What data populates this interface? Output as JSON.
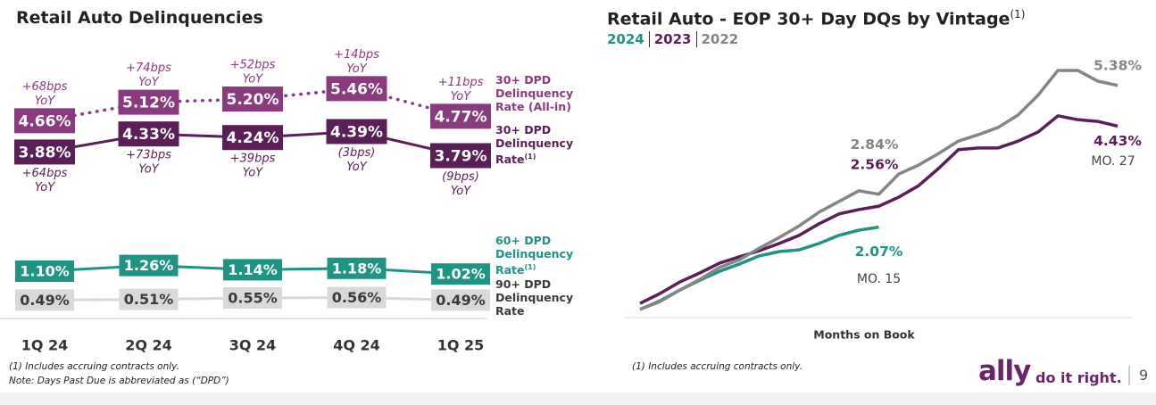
{
  "chart_data": [
    {
      "type": "line",
      "title": "Retail Auto Delinquencies",
      "categories": [
        "1Q 24",
        "2Q 24",
        "3Q 24",
        "4Q 24",
        "1Q 25"
      ],
      "series": [
        {
          "name": "30+ DPD Delinquency Rate (All-in)",
          "color": "#8b3a80",
          "line_style": "dotted",
          "label_color": "#ffffff",
          "annotation_side": "above",
          "values": [
            4.66,
            5.12,
            5.2,
            5.46,
            4.77
          ],
          "value_labels": [
            "4.66%",
            "5.12%",
            "5.20%",
            "5.46%",
            "4.77%"
          ],
          "annotations": [
            [
              "+68bps",
              "YoY"
            ],
            [
              "+74bps",
              "YoY"
            ],
            [
              "+52bps",
              "YoY"
            ],
            [
              "+14bps",
              "YoY"
            ],
            [
              "+11bps",
              "YoY"
            ]
          ]
        },
        {
          "name": "30+ DPD Delinquency Rate",
          "name_note": "(1)",
          "color": "#5b1f58",
          "line_style": "solid",
          "label_color": "#ffffff",
          "annotation_side": "below",
          "values": [
            3.88,
            4.33,
            4.24,
            4.39,
            3.79
          ],
          "value_labels": [
            "3.88%",
            "4.33%",
            "4.24%",
            "4.39%",
            "3.79%"
          ],
          "annotations": [
            [
              "+64bps",
              "YoY"
            ],
            [
              "+73bps",
              "YoY"
            ],
            [
              "+39bps",
              "YoY"
            ],
            [
              "(3bps)",
              "YoY"
            ],
            [
              "(9bps)",
              "YoY"
            ]
          ]
        },
        {
          "name": "60+ DPD Delinquency Rate",
          "name_note": "(1)",
          "color": "#1f9384",
          "line_style": "solid",
          "label_color": "#ffffff",
          "values": [
            1.1,
            1.26,
            1.14,
            1.18,
            1.02
          ],
          "value_labels": [
            "1.10%",
            "1.26%",
            "1.14%",
            "1.18%",
            "1.02%"
          ]
        },
        {
          "name": "90+ DPD Delinquency Rate",
          "color": "#d9d9d9",
          "line_style": "solid",
          "label_color": "#3a3a3a",
          "legend_color": "#3a3a3a",
          "values": [
            0.49,
            0.51,
            0.55,
            0.56,
            0.49
          ],
          "value_labels": [
            "0.49%",
            "0.51%",
            "0.55%",
            "0.56%",
            "0.49%"
          ]
        }
      ],
      "footnotes": [
        "(1) Includes accruing contracts only.",
        "Note: Days Past Due is abbreviated as (“DPD”)"
      ]
    },
    {
      "type": "line",
      "title": "Retail Auto - EOP 30+ Day DQs by Vintage",
      "title_note": "(1)",
      "x_label": "Months on Book",
      "xlim": [
        3,
        27
      ],
      "ylim": [
        0,
        6
      ],
      "series": [
        {
          "name": "2024",
          "color": "#1f9384",
          "x": [
            3,
            4,
            5,
            6,
            7,
            8,
            9,
            10,
            11,
            12,
            13,
            14,
            15
          ],
          "values": [
            0.15,
            0.35,
            0.6,
            0.83,
            1.04,
            1.21,
            1.4,
            1.5,
            1.54,
            1.69,
            1.88,
            2.0,
            2.07
          ],
          "value_labels": [
            null,
            null,
            null,
            null,
            null,
            null,
            null,
            null,
            null,
            null,
            null,
            null,
            "2.07%"
          ]
        },
        {
          "name": "2023",
          "color": "#5b1f58",
          "x": [
            3,
            4,
            5,
            6,
            7,
            8,
            9,
            10,
            11,
            12,
            13,
            14,
            15,
            16,
            17,
            18,
            19,
            20,
            21,
            22,
            23,
            24,
            25,
            26,
            27
          ],
          "values": [
            0.29,
            0.52,
            0.79,
            1.0,
            1.23,
            1.38,
            1.52,
            1.69,
            1.88,
            2.15,
            2.38,
            2.48,
            2.56,
            2.77,
            3.04,
            3.44,
            3.88,
            3.92,
            3.92,
            4.08,
            4.29,
            4.67,
            4.58,
            4.54,
            4.43
          ],
          "value_labels": [
            null,
            null,
            null,
            null,
            null,
            null,
            null,
            null,
            null,
            null,
            null,
            null,
            "2.56%",
            null,
            null,
            null,
            null,
            null,
            null,
            null,
            null,
            null,
            null,
            null,
            "4.43%"
          ]
        },
        {
          "name": "2022",
          "color": "#858585",
          "x": [
            3,
            4,
            5,
            6,
            7,
            8,
            9,
            10,
            11,
            12,
            13,
            14,
            15,
            16,
            17,
            18,
            19,
            20,
            21,
            22,
            23,
            24,
            25,
            26,
            27
          ],
          "values": [
            0.15,
            0.33,
            0.6,
            0.85,
            1.13,
            1.31,
            1.58,
            1.83,
            2.1,
            2.42,
            2.67,
            2.92,
            2.84,
            3.31,
            3.52,
            3.79,
            4.08,
            4.23,
            4.4,
            4.69,
            5.15,
            5.73,
            5.73,
            5.48,
            5.38
          ],
          "value_labels": [
            null,
            null,
            null,
            null,
            null,
            null,
            null,
            null,
            null,
            null,
            null,
            null,
            "2.84%",
            null,
            null,
            null,
            null,
            null,
            null,
            null,
            null,
            null,
            null,
            null,
            "5.38%"
          ]
        }
      ],
      "annotations": [
        {
          "text": "MO. 15",
          "x": 15
        },
        {
          "text": "MO. 27",
          "x": 27
        }
      ],
      "footnote": "(1) Includes accruing contracts only."
    }
  ],
  "footer": {
    "logo": "ally",
    "tagline": "do it right.",
    "page": "9"
  }
}
